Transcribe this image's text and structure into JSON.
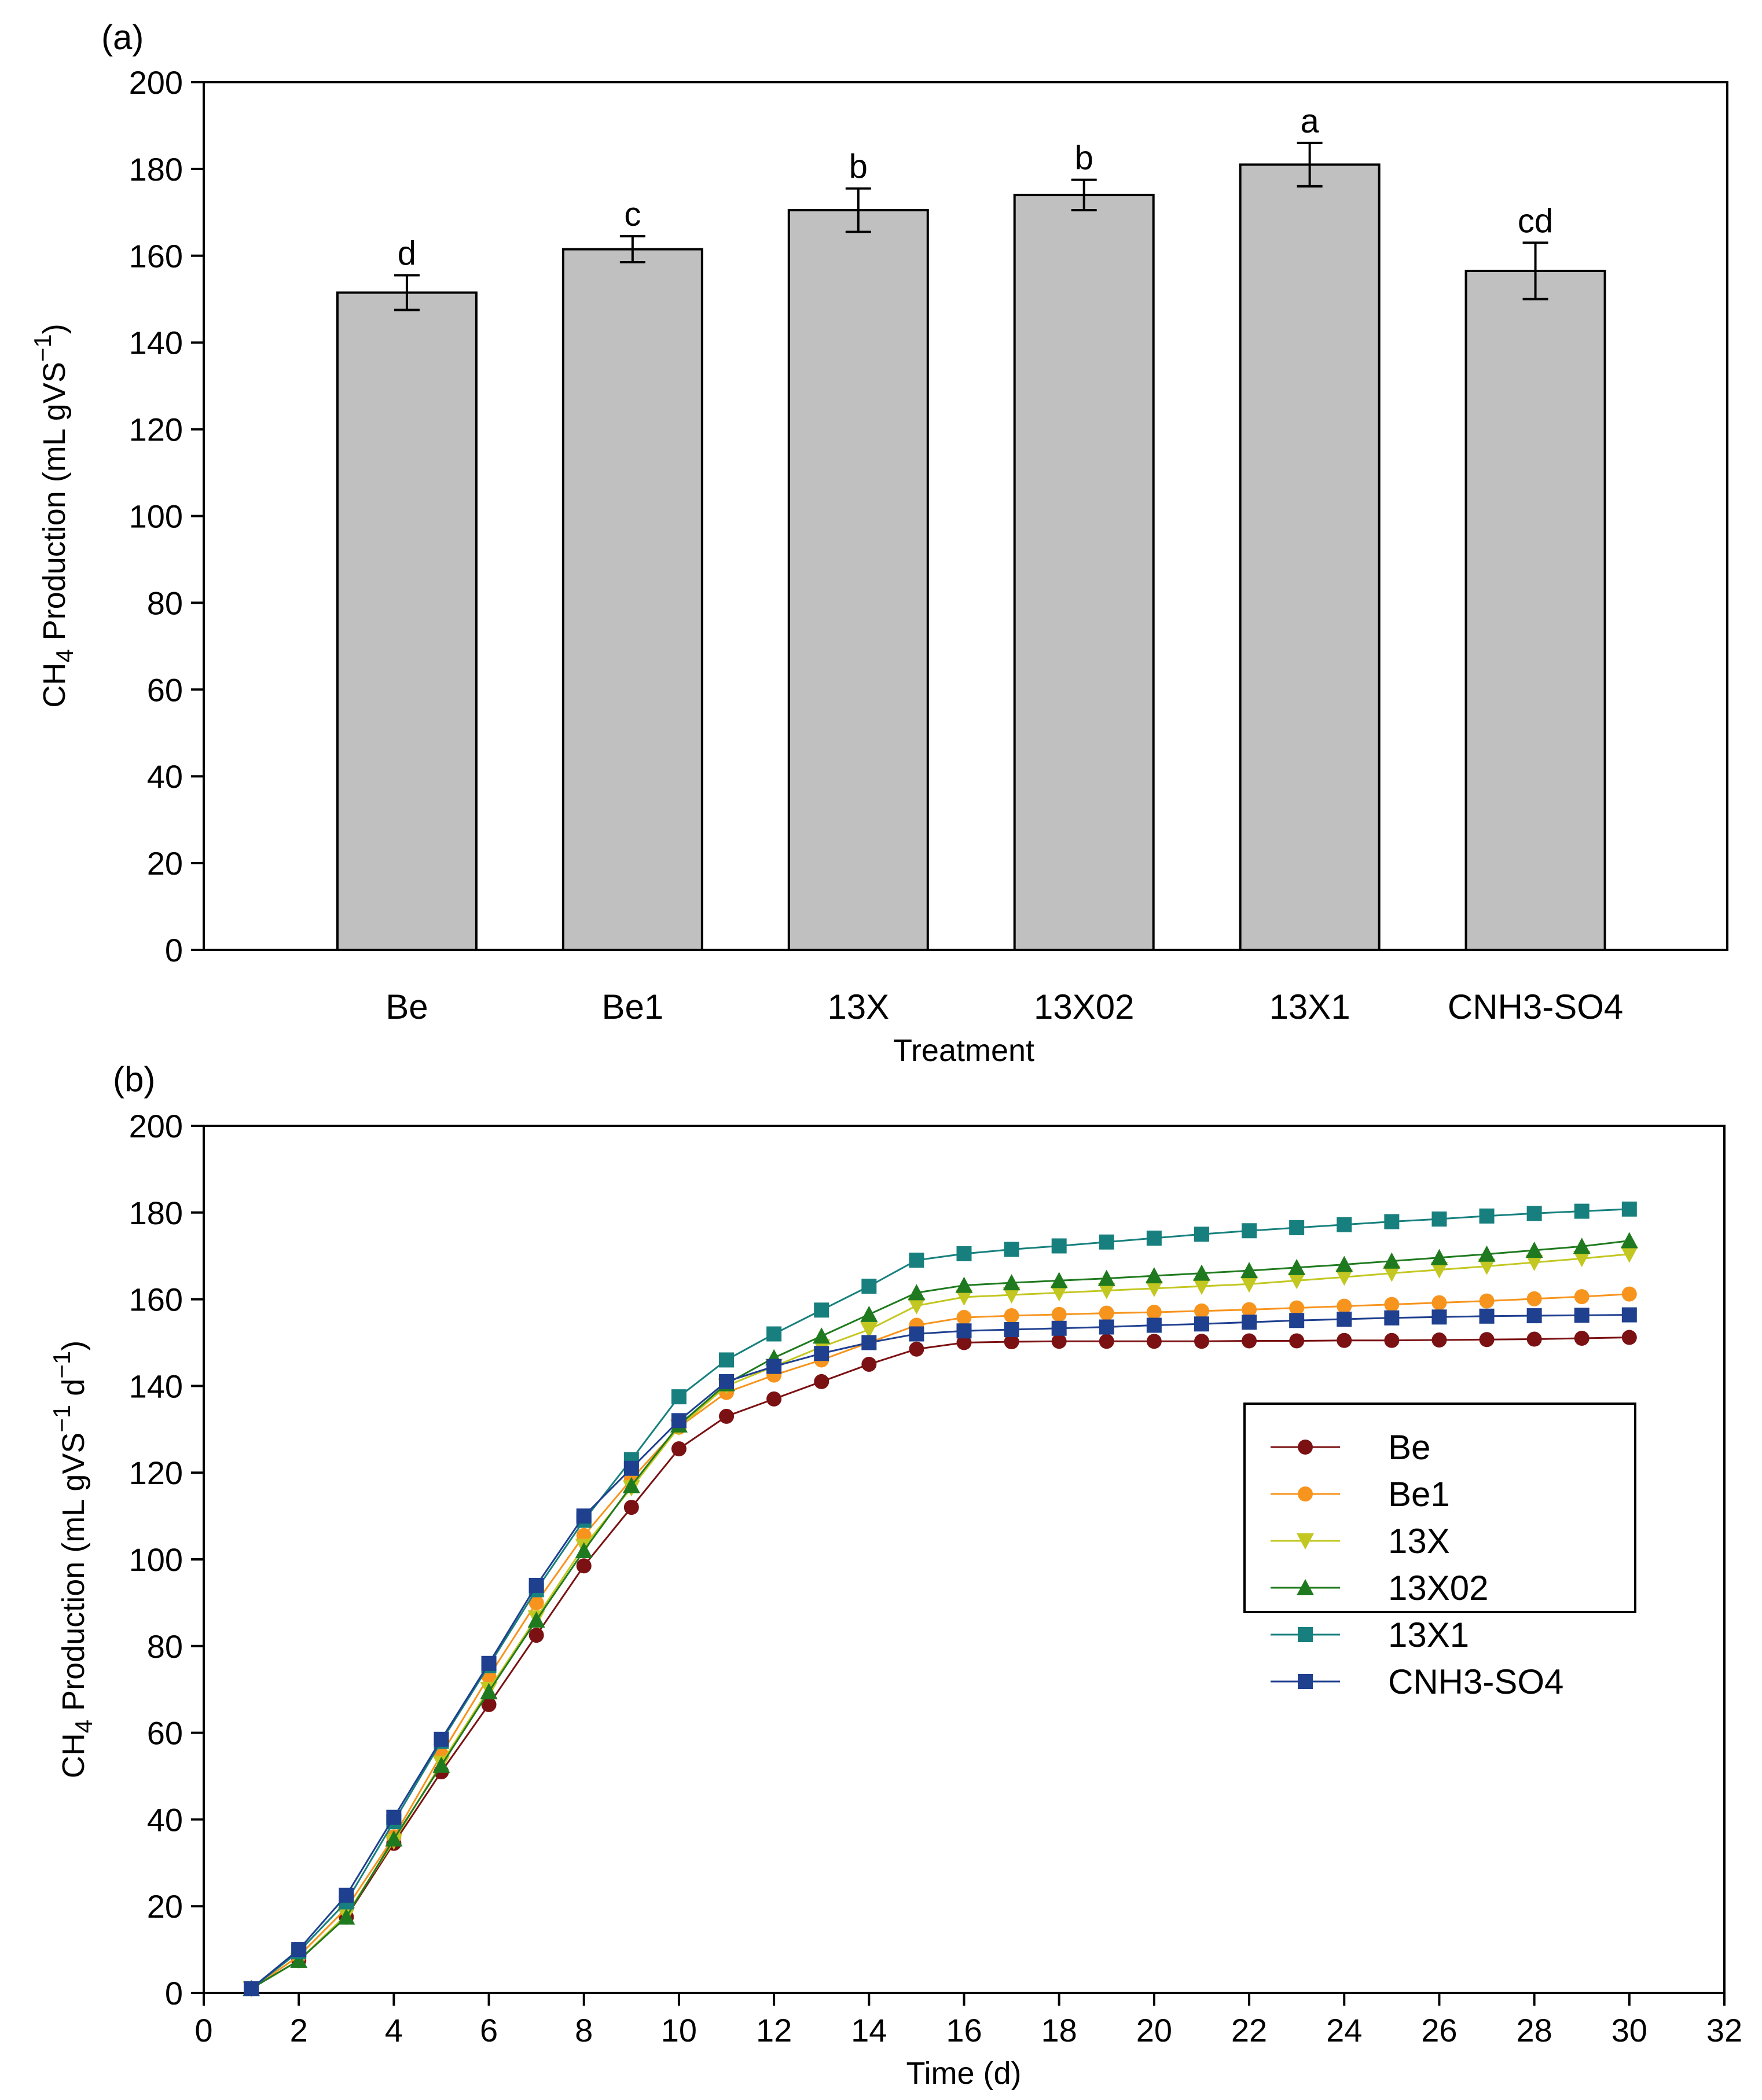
{
  "chart_data": [
    {
      "type": "bar",
      "panel_label": "(a)",
      "categories": [
        "Be",
        "Be1",
        "13X",
        "13X02",
        "13X1",
        "CNH3-SO4"
      ],
      "values": [
        151.5,
        161.5,
        170.5,
        174.0,
        181.0,
        156.5
      ],
      "error": [
        4.0,
        3.0,
        5.0,
        3.5,
        5.0,
        6.5
      ],
      "significance": [
        "d",
        "c",
        "b",
        "b",
        "a",
        "cd"
      ],
      "xlabel": "Treatment",
      "ylabel_main": "CH",
      "ylabel_sub": "4",
      "ylabel_rest": " Production (mL gVS",
      "ylabel_exp": "−1",
      "ylabel_close": ")",
      "ylim": [
        0,
        200
      ],
      "yticks": [
        "0",
        "20",
        "40",
        "60",
        "80",
        "100",
        "120",
        "140",
        "160",
        "180",
        "200"
      ],
      "bar_color": "#c0c0c0",
      "grid": false
    },
    {
      "type": "line",
      "panel_label": "(b)",
      "x": [
        1,
        2,
        3,
        4,
        5,
        6,
        7,
        8,
        9,
        10,
        11,
        12,
        13,
        14,
        15,
        16,
        17,
        18,
        19,
        20,
        21,
        22,
        23,
        24,
        25,
        26,
        27,
        28,
        29,
        30
      ],
      "series": [
        {
          "name": "Be",
          "color": "#7b1113",
          "marker": "circle",
          "values": [
            1.0,
            7.5,
            17.5,
            34.5,
            51.0,
            66.5,
            82.5,
            98.5,
            112.0,
            125.5,
            133.0,
            137.0,
            141.0,
            145.0,
            148.5,
            150.0,
            150.2,
            150.3,
            150.3,
            150.3,
            150.3,
            150.4,
            150.4,
            150.5,
            150.5,
            150.6,
            150.7,
            150.8,
            151.0,
            151.2
          ]
        },
        {
          "name": "Be1",
          "color": "#f7941d",
          "marker": "circle",
          "values": [
            1.0,
            8.5,
            19.5,
            36.0,
            55.0,
            73.0,
            90.0,
            105.5,
            118.5,
            130.5,
            138.5,
            142.5,
            146.0,
            150.0,
            154.0,
            155.8,
            156.2,
            156.5,
            156.8,
            157.0,
            157.3,
            157.6,
            158.0,
            158.4,
            158.8,
            159.2,
            159.6,
            160.1,
            160.6,
            161.2
          ]
        },
        {
          "name": "13X",
          "color": "#c3c721",
          "marker": "triangle-down",
          "values": [
            1.0,
            7.5,
            18.0,
            35.0,
            53.0,
            70.0,
            86.5,
            103.0,
            116.5,
            130.5,
            140.0,
            144.5,
            149.0,
            153.0,
            158.5,
            160.5,
            161.0,
            161.5,
            162.0,
            162.5,
            163.0,
            163.5,
            164.3,
            165.1,
            166.0,
            166.8,
            167.6,
            168.5,
            169.4,
            170.4
          ]
        },
        {
          "name": "13X02",
          "color": "#1f7a1f",
          "marker": "triangle-up",
          "values": [
            1.0,
            7.5,
            17.5,
            35.5,
            52.5,
            69.5,
            86.0,
            102.0,
            117.0,
            131.0,
            140.5,
            146.5,
            151.5,
            156.5,
            161.5,
            163.2,
            163.8,
            164.3,
            164.8,
            165.4,
            166.0,
            166.6,
            167.3,
            168.0,
            168.8,
            169.6,
            170.4,
            171.3,
            172.2,
            173.5
          ]
        },
        {
          "name": "13X1",
          "color": "#17807e",
          "marker": "square",
          "values": [
            1.0,
            9.5,
            21.0,
            39.5,
            58.0,
            75.5,
            93.0,
            109.0,
            123.0,
            137.5,
            146.0,
            152.0,
            157.5,
            163.0,
            169.0,
            170.5,
            171.5,
            172.3,
            173.2,
            174.1,
            175.0,
            175.8,
            176.5,
            177.2,
            177.9,
            178.5,
            179.2,
            179.8,
            180.3,
            180.8
          ]
        },
        {
          "name": "CNH3-SO4",
          "color": "#1f3f8f",
          "marker": "square",
          "values": [
            1.0,
            10.0,
            22.5,
            40.5,
            58.5,
            76.0,
            94.0,
            110.0,
            121.0,
            132.0,
            141.0,
            144.5,
            147.5,
            150.0,
            152.0,
            152.7,
            153.0,
            153.3,
            153.6,
            154.0,
            154.3,
            154.7,
            155.1,
            155.4,
            155.7,
            155.9,
            156.1,
            156.2,
            156.3,
            156.4
          ]
        }
      ],
      "xlabel": "Time (d)",
      "ylabel_main": "CH",
      "ylabel_sub": "4",
      "ylabel_rest": " Production (mL gVS",
      "ylabel_exp": "−1",
      "ylabel_mid": " d",
      "ylabel_exp2": "−1",
      "ylabel_close": ")",
      "xlim": [
        0,
        32
      ],
      "ylim": [
        0,
        200
      ],
      "xticks": [
        "0",
        "2",
        "4",
        "6",
        "8",
        "10",
        "12",
        "14",
        "16",
        "18",
        "20",
        "22",
        "24",
        "26",
        "28",
        "30",
        "32"
      ],
      "yticks": [
        "0",
        "20",
        "40",
        "60",
        "80",
        "100",
        "120",
        "140",
        "160",
        "180",
        "200"
      ],
      "legend_position": "center-right",
      "grid": false
    }
  ]
}
